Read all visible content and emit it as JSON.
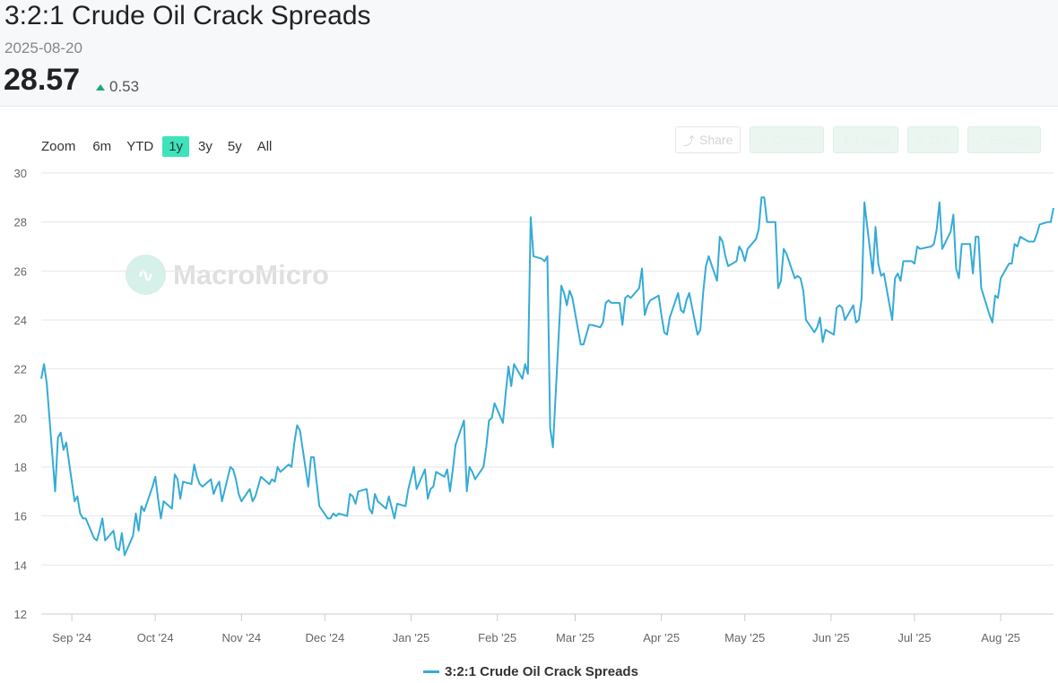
{
  "header": {
    "title": "3:2:1 Crude Oil Crack Spreads",
    "date": "2025-08-20",
    "price": "28.57",
    "change": "0.53"
  },
  "zoom": {
    "label": "Zoom",
    "buttons": [
      "6m",
      "YTD",
      "1y",
      "3y",
      "5y",
      "All"
    ],
    "active": "1y"
  },
  "toolbar": {
    "share": "Share",
    "custom": "Custom",
    "image": "Image",
    "diy": "DIY",
    "enlarge": "Enlarge"
  },
  "watermark": "MacroMicro",
  "colors": {
    "line": "#35abd6",
    "accent": "#3ee3bb",
    "up": "#19a97b"
  },
  "chart_data": {
    "type": "line",
    "x_start": "2024-08-21",
    "x_end": "2025-08-20",
    "ylim": [
      12,
      30
    ],
    "yticks": [
      12,
      14,
      16,
      18,
      20,
      22,
      24,
      26,
      28,
      30
    ],
    "xticks": [
      {
        "label": "Sep '24",
        "date": "2024-09-01"
      },
      {
        "label": "Oct '24",
        "date": "2024-10-01"
      },
      {
        "label": "Nov '24",
        "date": "2024-11-01"
      },
      {
        "label": "Dec '24",
        "date": "2024-12-01"
      },
      {
        "label": "Jan '25",
        "date": "2025-01-01"
      },
      {
        "label": "Feb '25",
        "date": "2025-02-01"
      },
      {
        "label": "Mar '25",
        "date": "2025-03-01"
      },
      {
        "label": "Apr '25",
        "date": "2025-04-01"
      },
      {
        "label": "May '25",
        "date": "2025-05-01"
      },
      {
        "label": "Jun '25",
        "date": "2025-06-01"
      },
      {
        "label": "Jul '25",
        "date": "2025-07-01"
      },
      {
        "label": "Aug '25",
        "date": "2025-08-01"
      }
    ],
    "grid": true,
    "legend": "bottom-center",
    "series": [
      {
        "name": "3:2:1 Crude Oil Crack Spreads",
        "points": [
          [
            "2024-08-21",
            21.6
          ],
          [
            "2024-08-22",
            22.2
          ],
          [
            "2024-08-23",
            21.4
          ],
          [
            "2024-08-26",
            17.0
          ],
          [
            "2024-08-27",
            19.2
          ],
          [
            "2024-08-28",
            19.4
          ],
          [
            "2024-08-29",
            18.7
          ],
          [
            "2024-08-30",
            19.0
          ],
          [
            "2024-09-02",
            16.6
          ],
          [
            "2024-09-03",
            16.8
          ],
          [
            "2024-09-04",
            16.1
          ],
          [
            "2024-09-05",
            15.9
          ],
          [
            "2024-09-06",
            15.9
          ],
          [
            "2024-09-09",
            15.1
          ],
          [
            "2024-09-10",
            15.0
          ],
          [
            "2024-09-11",
            15.4
          ],
          [
            "2024-09-12",
            15.9
          ],
          [
            "2024-09-13",
            15.0
          ],
          [
            "2024-09-16",
            15.4
          ],
          [
            "2024-09-17",
            14.7
          ],
          [
            "2024-09-18",
            14.6
          ],
          [
            "2024-09-19",
            15.3
          ],
          [
            "2024-09-20",
            14.4
          ],
          [
            "2024-09-23",
            15.2
          ],
          [
            "2024-09-24",
            16.1
          ],
          [
            "2024-09-25",
            15.4
          ],
          [
            "2024-09-26",
            16.4
          ],
          [
            "2024-09-27",
            16.2
          ],
          [
            "2024-09-30",
            17.2
          ],
          [
            "2024-10-01",
            17.6
          ],
          [
            "2024-10-02",
            16.7
          ],
          [
            "2024-10-03",
            15.9
          ],
          [
            "2024-10-04",
            16.6
          ],
          [
            "2024-10-07",
            16.3
          ],
          [
            "2024-10-08",
            17.7
          ],
          [
            "2024-10-09",
            17.5
          ],
          [
            "2024-10-10",
            16.7
          ],
          [
            "2024-10-11",
            17.4
          ],
          [
            "2024-10-14",
            17.3
          ],
          [
            "2024-10-15",
            18.1
          ],
          [
            "2024-10-16",
            17.6
          ],
          [
            "2024-10-17",
            17.3
          ],
          [
            "2024-10-18",
            17.2
          ],
          [
            "2024-10-21",
            17.5
          ],
          [
            "2024-10-22",
            16.9
          ],
          [
            "2024-10-23",
            17.2
          ],
          [
            "2024-10-24",
            17.4
          ],
          [
            "2024-10-25",
            16.6
          ],
          [
            "2024-10-28",
            18.0
          ],
          [
            "2024-10-29",
            17.9
          ],
          [
            "2024-10-30",
            17.5
          ],
          [
            "2024-10-31",
            16.9
          ],
          [
            "2024-11-01",
            16.6
          ],
          [
            "2024-11-04",
            17.1
          ],
          [
            "2024-11-05",
            16.6
          ],
          [
            "2024-11-06",
            16.8
          ],
          [
            "2024-11-07",
            17.2
          ],
          [
            "2024-11-08",
            17.6
          ],
          [
            "2024-11-11",
            17.3
          ],
          [
            "2024-11-12",
            17.5
          ],
          [
            "2024-11-13",
            17.4
          ],
          [
            "2024-11-14",
            18.0
          ],
          [
            "2024-11-15",
            17.8
          ],
          [
            "2024-11-18",
            18.1
          ],
          [
            "2024-11-19",
            18.0
          ],
          [
            "2024-11-20",
            19.0
          ],
          [
            "2024-11-21",
            19.7
          ],
          [
            "2024-11-22",
            19.5
          ],
          [
            "2024-11-25",
            17.2
          ],
          [
            "2024-11-26",
            18.4
          ],
          [
            "2024-11-27",
            18.4
          ],
          [
            "2024-11-29",
            16.4
          ],
          [
            "2024-12-02",
            15.9
          ],
          [
            "2024-12-03",
            15.9
          ],
          [
            "2024-12-04",
            16.1
          ],
          [
            "2024-12-05",
            16.0
          ],
          [
            "2024-12-06",
            16.1
          ],
          [
            "2024-12-09",
            16.0
          ],
          [
            "2024-12-10",
            16.9
          ],
          [
            "2024-12-11",
            16.8
          ],
          [
            "2024-12-12",
            16.5
          ],
          [
            "2024-12-13",
            17.0
          ],
          [
            "2024-12-16",
            17.1
          ],
          [
            "2024-12-17",
            16.3
          ],
          [
            "2024-12-18",
            16.1
          ],
          [
            "2024-12-19",
            16.9
          ],
          [
            "2024-12-20",
            16.6
          ],
          [
            "2024-12-23",
            16.3
          ],
          [
            "2024-12-24",
            16.8
          ],
          [
            "2024-12-26",
            15.9
          ],
          [
            "2024-12-27",
            16.5
          ],
          [
            "2024-12-30",
            16.4
          ],
          [
            "2024-12-31",
            17.1
          ],
          [
            "2025-01-02",
            18.0
          ],
          [
            "2025-01-03",
            17.1
          ],
          [
            "2025-01-06",
            17.9
          ],
          [
            "2025-01-07",
            16.7
          ],
          [
            "2025-01-08",
            17.1
          ],
          [
            "2025-01-09",
            17.2
          ],
          [
            "2025-01-10",
            17.8
          ],
          [
            "2025-01-13",
            17.6
          ],
          [
            "2025-01-14",
            17.9
          ],
          [
            "2025-01-15",
            17.0
          ],
          [
            "2025-01-16",
            17.9
          ],
          [
            "2025-01-17",
            18.9
          ],
          [
            "2025-01-20",
            19.9
          ],
          [
            "2025-01-21",
            17.0
          ],
          [
            "2025-01-22",
            18.0
          ],
          [
            "2025-01-23",
            17.8
          ],
          [
            "2025-01-24",
            17.5
          ],
          [
            "2025-01-27",
            18.0
          ],
          [
            "2025-01-28",
            18.8
          ],
          [
            "2025-01-29",
            19.9
          ],
          [
            "2025-01-30",
            20.0
          ],
          [
            "2025-01-31",
            20.6
          ],
          [
            "2025-02-03",
            19.8
          ],
          [
            "2025-02-04",
            21.0
          ],
          [
            "2025-02-05",
            22.1
          ],
          [
            "2025-02-06",
            21.3
          ],
          [
            "2025-02-07",
            22.2
          ],
          [
            "2025-02-10",
            21.6
          ],
          [
            "2025-02-11",
            22.2
          ],
          [
            "2025-02-12",
            21.8
          ],
          [
            "2025-02-13",
            28.2
          ],
          [
            "2025-02-14",
            26.6
          ],
          [
            "2025-02-17",
            26.5
          ],
          [
            "2025-02-18",
            26.4
          ],
          [
            "2025-02-19",
            26.6
          ],
          [
            "2025-02-20",
            19.6
          ],
          [
            "2025-02-21",
            18.8
          ],
          [
            "2025-02-24",
            25.4
          ],
          [
            "2025-02-25",
            25.1
          ],
          [
            "2025-02-26",
            24.6
          ],
          [
            "2025-02-27",
            25.2
          ],
          [
            "2025-02-28",
            24.9
          ],
          [
            "2025-03-03",
            23.0
          ],
          [
            "2025-03-04",
            23.0
          ],
          [
            "2025-03-05",
            23.4
          ],
          [
            "2025-03-06",
            23.8
          ],
          [
            "2025-03-07",
            23.8
          ],
          [
            "2025-03-10",
            23.7
          ],
          [
            "2025-03-11",
            23.9
          ],
          [
            "2025-03-12",
            24.7
          ],
          [
            "2025-03-13",
            24.8
          ],
          [
            "2025-03-14",
            24.7
          ],
          [
            "2025-03-17",
            24.7
          ],
          [
            "2025-03-18",
            23.8
          ],
          [
            "2025-03-19",
            24.9
          ],
          [
            "2025-03-20",
            25.0
          ],
          [
            "2025-03-21",
            24.9
          ],
          [
            "2025-03-24",
            25.3
          ],
          [
            "2025-03-25",
            26.1
          ],
          [
            "2025-03-26",
            24.2
          ],
          [
            "2025-03-27",
            24.6
          ],
          [
            "2025-03-28",
            24.8
          ],
          [
            "2025-03-31",
            25.0
          ],
          [
            "2025-04-01",
            24.2
          ],
          [
            "2025-04-02",
            23.5
          ],
          [
            "2025-04-03",
            23.4
          ],
          [
            "2025-04-04",
            24.1
          ],
          [
            "2025-04-07",
            25.1
          ],
          [
            "2025-04-08",
            24.4
          ],
          [
            "2025-04-09",
            24.3
          ],
          [
            "2025-04-10",
            24.8
          ],
          [
            "2025-04-11",
            25.1
          ],
          [
            "2025-04-14",
            23.4
          ],
          [
            "2025-04-15",
            23.6
          ],
          [
            "2025-04-16",
            25.1
          ],
          [
            "2025-04-17",
            26.2
          ],
          [
            "2025-04-18",
            26.6
          ],
          [
            "2025-04-21",
            25.6
          ],
          [
            "2025-04-22",
            27.4
          ],
          [
            "2025-04-23",
            27.2
          ],
          [
            "2025-04-24",
            26.6
          ],
          [
            "2025-04-25",
            26.2
          ],
          [
            "2025-04-28",
            26.4
          ],
          [
            "2025-04-29",
            27.0
          ],
          [
            "2025-04-30",
            26.8
          ],
          [
            "2025-05-01",
            26.4
          ],
          [
            "2025-05-02",
            26.9
          ],
          [
            "2025-05-05",
            27.3
          ],
          [
            "2025-05-06",
            27.7
          ],
          [
            "2025-05-07",
            29.0
          ],
          [
            "2025-05-08",
            29.0
          ],
          [
            "2025-05-09",
            28.0
          ],
          [
            "2025-05-12",
            28.0
          ],
          [
            "2025-05-13",
            25.3
          ],
          [
            "2025-05-14",
            25.6
          ],
          [
            "2025-05-15",
            26.9
          ],
          [
            "2025-05-16",
            26.7
          ],
          [
            "2025-05-19",
            25.7
          ],
          [
            "2025-05-20",
            25.8
          ],
          [
            "2025-05-21",
            25.7
          ],
          [
            "2025-05-22",
            25.2
          ],
          [
            "2025-05-23",
            24.0
          ],
          [
            "2025-05-26",
            23.5
          ],
          [
            "2025-05-27",
            23.7
          ],
          [
            "2025-05-28",
            24.1
          ],
          [
            "2025-05-29",
            23.1
          ],
          [
            "2025-05-30",
            23.6
          ],
          [
            "2025-06-02",
            23.4
          ],
          [
            "2025-06-03",
            24.5
          ],
          [
            "2025-06-04",
            24.6
          ],
          [
            "2025-06-05",
            24.5
          ],
          [
            "2025-06-06",
            24.0
          ],
          [
            "2025-06-09",
            24.6
          ],
          [
            "2025-06-10",
            23.9
          ],
          [
            "2025-06-11",
            24.0
          ],
          [
            "2025-06-12",
            24.9
          ],
          [
            "2025-06-13",
            28.8
          ],
          [
            "2025-06-16",
            25.9
          ],
          [
            "2025-06-17",
            27.8
          ],
          [
            "2025-06-18",
            26.3
          ],
          [
            "2025-06-19",
            25.8
          ],
          [
            "2025-06-20",
            25.9
          ],
          [
            "2025-06-23",
            24.0
          ],
          [
            "2025-06-24",
            25.7
          ],
          [
            "2025-06-25",
            25.9
          ],
          [
            "2025-06-26",
            25.6
          ],
          [
            "2025-06-27",
            26.4
          ],
          [
            "2025-06-30",
            26.4
          ],
          [
            "2025-07-01",
            26.3
          ],
          [
            "2025-07-02",
            27.0
          ],
          [
            "2025-07-03",
            26.9
          ],
          [
            "2025-07-07",
            27.0
          ],
          [
            "2025-07-08",
            27.1
          ],
          [
            "2025-07-09",
            27.7
          ],
          [
            "2025-07-10",
            28.8
          ],
          [
            "2025-07-11",
            26.9
          ],
          [
            "2025-07-14",
            27.6
          ],
          [
            "2025-07-15",
            28.3
          ],
          [
            "2025-07-16",
            26.1
          ],
          [
            "2025-07-17",
            25.7
          ],
          [
            "2025-07-18",
            27.1
          ],
          [
            "2025-07-21",
            27.1
          ],
          [
            "2025-07-22",
            25.9
          ],
          [
            "2025-07-23",
            27.4
          ],
          [
            "2025-07-24",
            27.4
          ],
          [
            "2025-07-25",
            25.3
          ],
          [
            "2025-07-28",
            24.2
          ],
          [
            "2025-07-29",
            23.9
          ],
          [
            "2025-07-30",
            25.0
          ],
          [
            "2025-07-31",
            24.9
          ],
          [
            "2025-08-01",
            25.7
          ],
          [
            "2025-08-04",
            26.3
          ],
          [
            "2025-08-05",
            26.3
          ],
          [
            "2025-08-06",
            27.1
          ],
          [
            "2025-08-07",
            27.0
          ],
          [
            "2025-08-08",
            27.4
          ],
          [
            "2025-08-11",
            27.2
          ],
          [
            "2025-08-12",
            27.2
          ],
          [
            "2025-08-13",
            27.2
          ],
          [
            "2025-08-14",
            27.5
          ],
          [
            "2025-08-15",
            27.9
          ],
          [
            "2025-08-18",
            28.0
          ],
          [
            "2025-08-19",
            28.0
          ],
          [
            "2025-08-20",
            28.57
          ]
        ]
      }
    ]
  }
}
